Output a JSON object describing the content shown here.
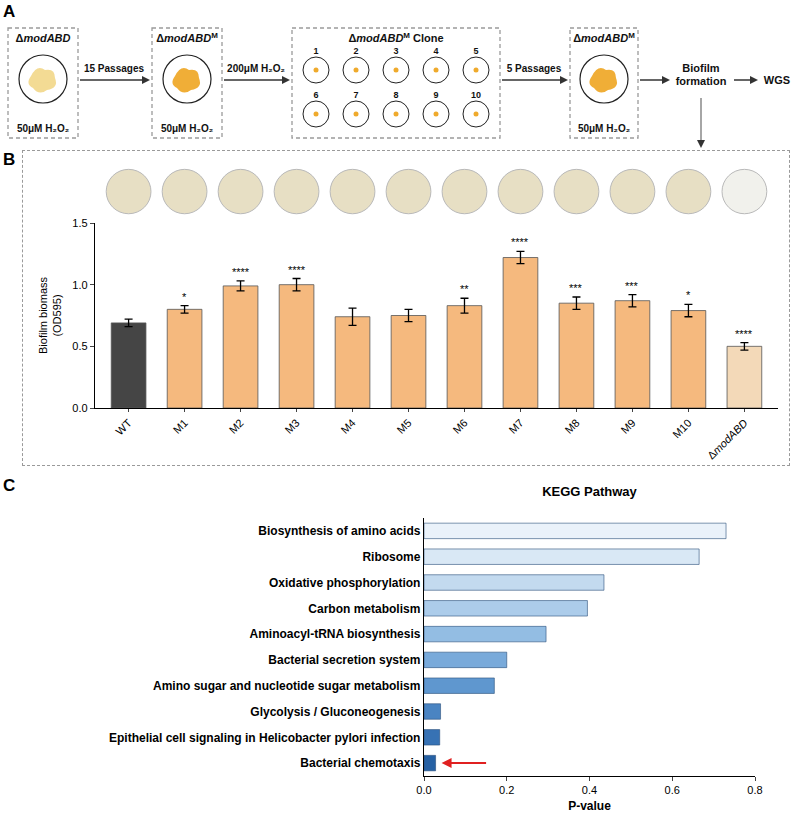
{
  "diagram": {
    "label": "A",
    "boxes": [
      {
        "title": "ΔmodABD",
        "note": "50μM H₂O₂"
      },
      {
        "title": "ΔmodABD",
        "superscript": "M",
        "note": "50μM H₂O₂"
      },
      {
        "title": "ΔmodABD",
        "superscript": "M",
        "suffix": "Clone",
        "clones": [
          "1",
          "2",
          "3",
          "4",
          "5",
          "6",
          "7",
          "8",
          "9",
          "10"
        ]
      },
      {
        "title": "ΔmodABD",
        "superscript": "M",
        "note": "50μM H₂O₂"
      }
    ],
    "arrows": [
      "15 Passages",
      "200μM H₂O₂",
      "5 Passages"
    ],
    "outputs": [
      "Biofilm formation",
      "WGS"
    ]
  },
  "chart_data": [
    {
      "type": "bar",
      "label": "B",
      "categories": [
        "WT",
        "M1",
        "M2",
        "M3",
        "M4",
        "M5",
        "M6",
        "M7",
        "M8",
        "M9",
        "M10",
        "ΔmodABD"
      ],
      "values": [
        0.69,
        0.8,
        0.99,
        1.0,
        0.74,
        0.75,
        0.83,
        1.22,
        0.85,
        0.87,
        0.79,
        0.5
      ],
      "errors": [
        0.03,
        0.03,
        0.04,
        0.05,
        0.07,
        0.05,
        0.06,
        0.05,
        0.05,
        0.05,
        0.05,
        0.03
      ],
      "annotations": [
        null,
        "*",
        "****",
        "****",
        null,
        null,
        "**",
        "****",
        "***",
        "***",
        "*",
        "****"
      ],
      "colors": [
        "#454545",
        "#f5b97e",
        "#f5b97e",
        "#f5b97e",
        "#f5b97e",
        "#f5b97e",
        "#f5b97e",
        "#f5b97e",
        "#f5b97e",
        "#f5b97e",
        "#f5b97e",
        "#f3d9b8"
      ],
      "y_label": "Biofilm biomass (OD595)",
      "ylim": [
        0,
        1.5
      ],
      "yticks": [
        {
          "value": 0,
          "label": "0.0"
        },
        0.5,
        {
          "value": 1,
          "label": "1.0"
        },
        1.5
      ]
    },
    {
      "type": "bar",
      "label": "C",
      "orientation": "horizontal",
      "title": "KEGG Pathway",
      "categories": [
        "Biosynthesis of amino acids",
        "Ribosome",
        "Oxidative phosphorylation",
        "Carbon metabolism",
        "Aminoacyl-tRNA biosynthesis",
        "Bacterial secretion system",
        "Amino sugar and nucleotide sugar metabolism",
        "Glycolysis / Gluconeogenesis",
        "Epithelial cell signaling in Helicobacter pylori infection",
        "Bacterial chemotaxis"
      ],
      "values": [
        0.73,
        0.665,
        0.435,
        0.395,
        0.295,
        0.2,
        0.17,
        0.04,
        0.038,
        0.028
      ],
      "colors": [
        "#eaf2fa",
        "#d9e8f5",
        "#c3daef",
        "#acccea",
        "#93bde3",
        "#79aada",
        "#5f97cf",
        "#4a84c2",
        "#3772b4",
        "#2661a4"
      ],
      "x_label": "P-value",
      "xlim": [
        0,
        0.8
      ],
      "xticks": [
        {
          "value": 0,
          "label": "0.0"
        },
        0.2,
        0.4,
        0.6,
        0.8
      ]
    }
  ]
}
